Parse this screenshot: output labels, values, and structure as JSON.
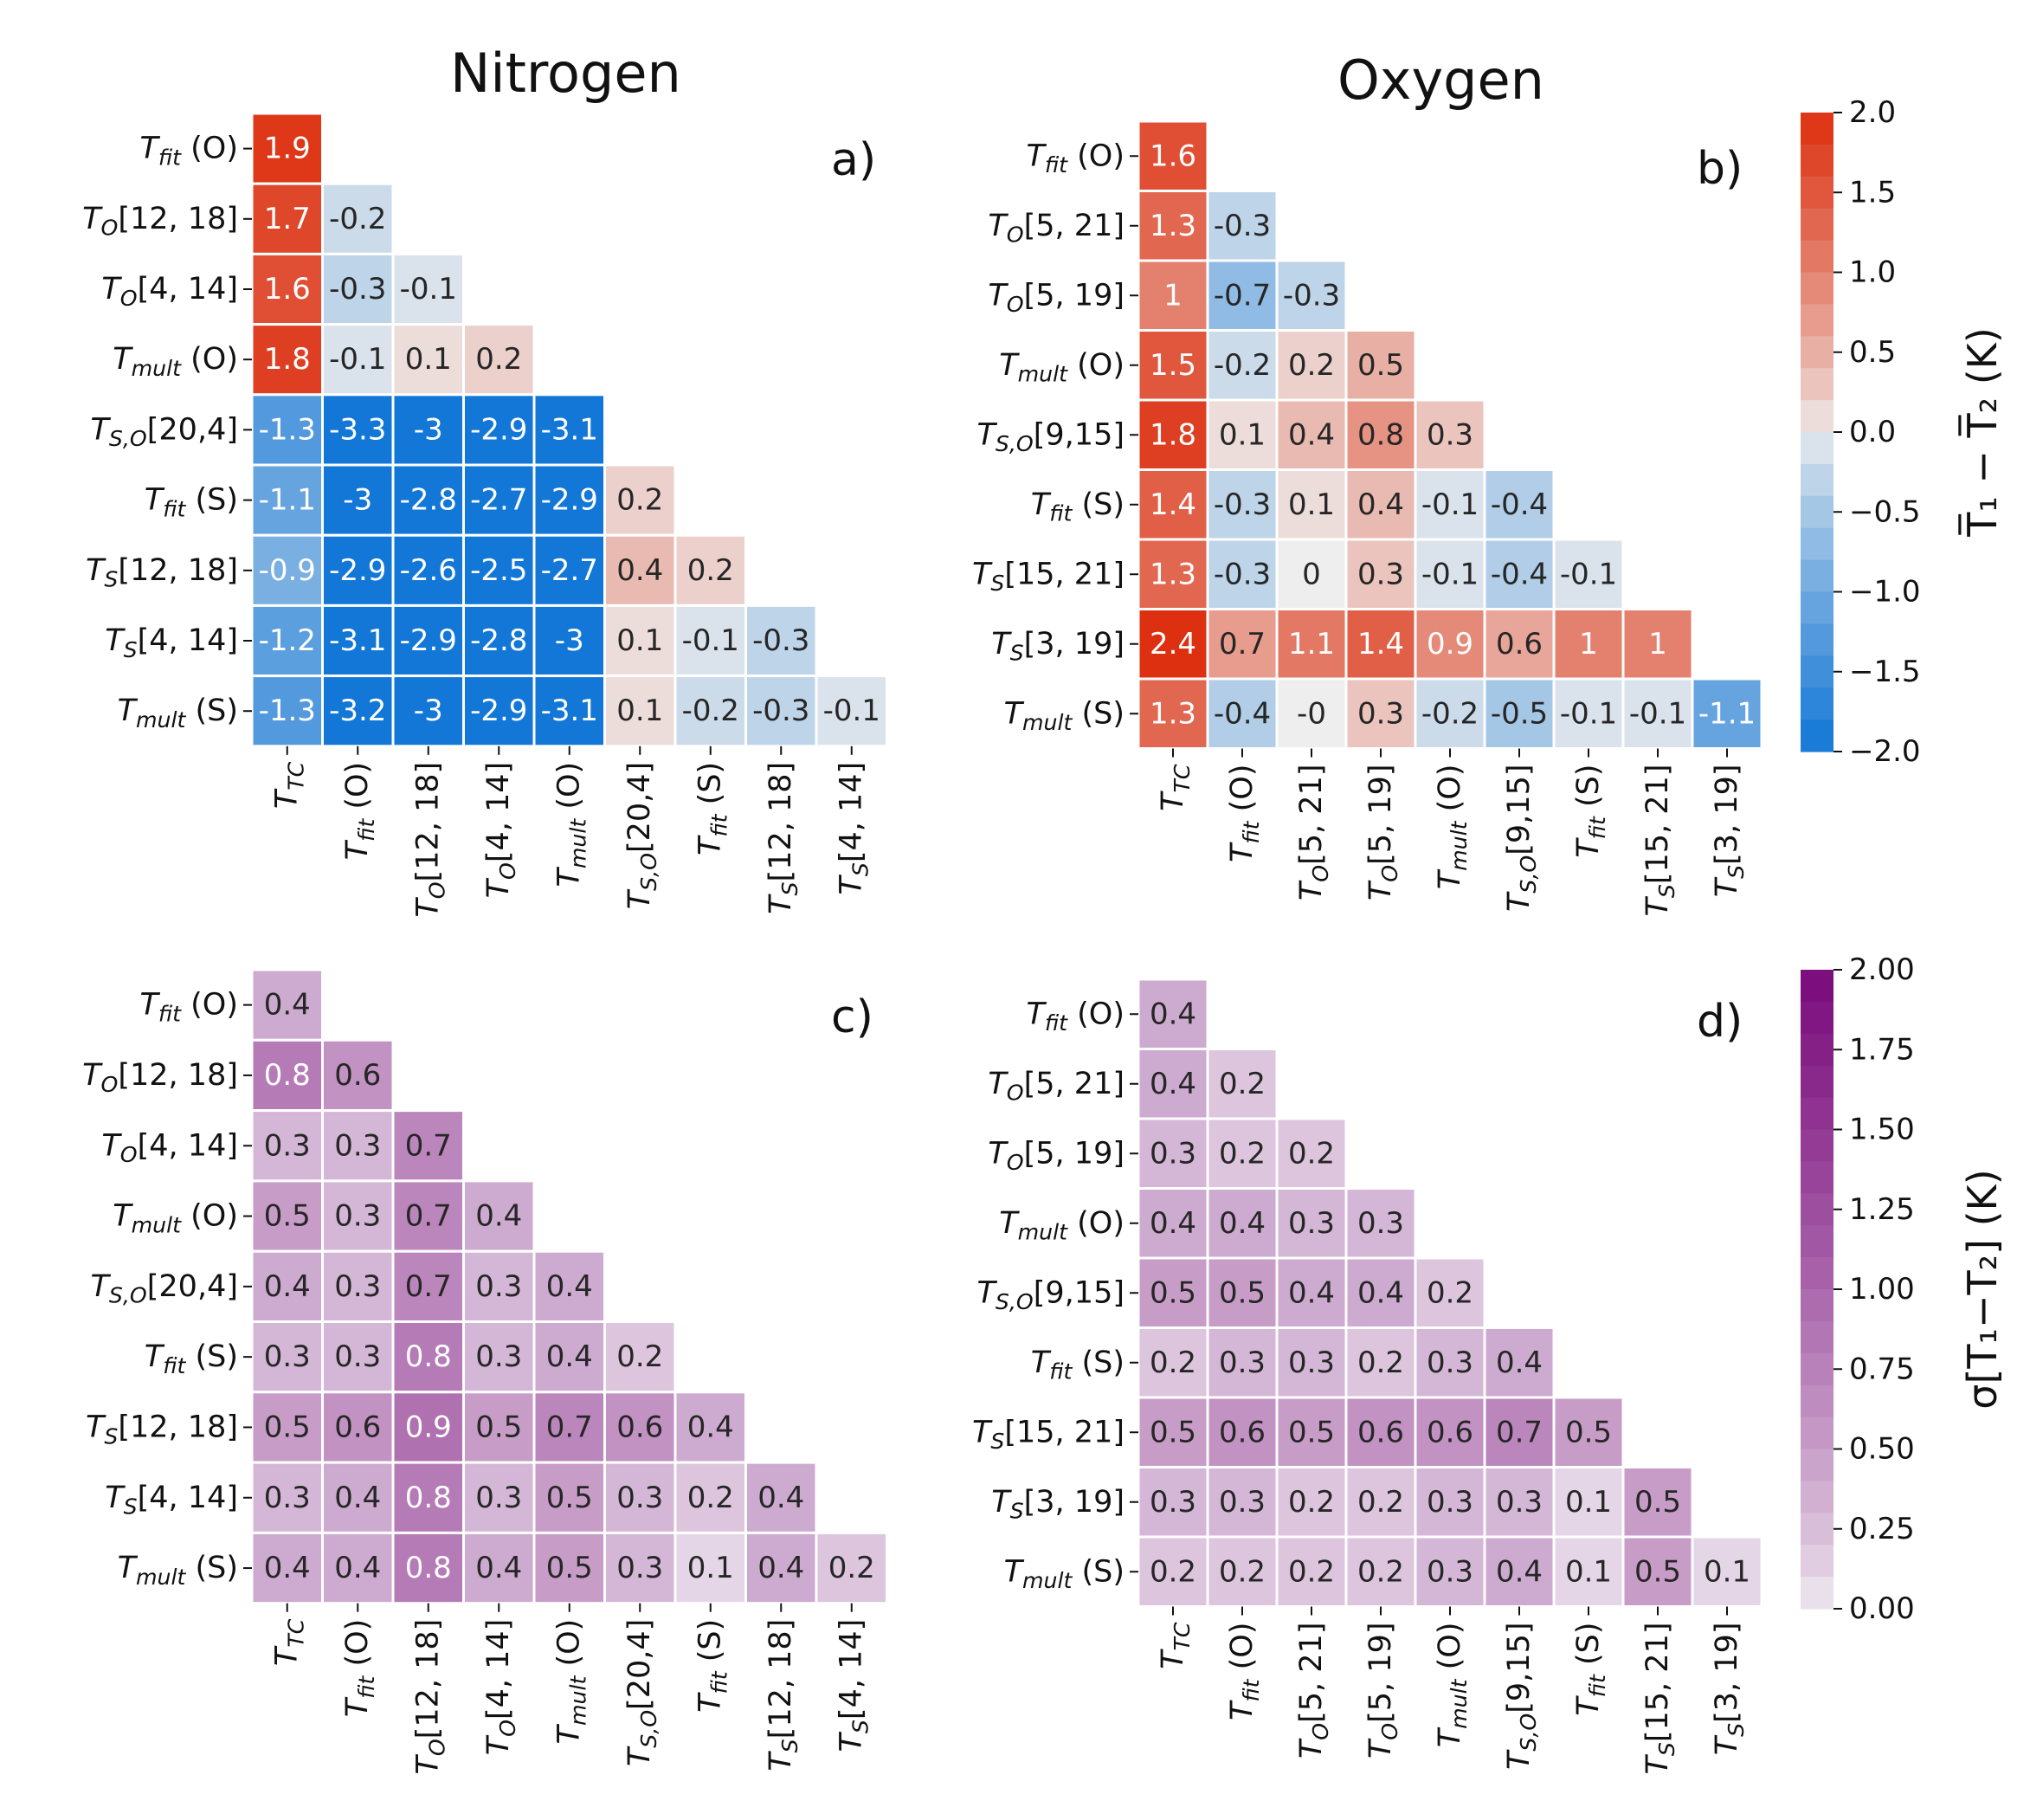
{
  "titles": {
    "nitrogen": "Nitrogen",
    "oxygen": "Oxygen"
  },
  "colorbars": [
    {
      "type": "diverging",
      "label": "T̅₁ − T̅₂ (K)",
      "ticks": [
        "2.0",
        "1.5",
        "1.0",
        "0.5",
        "0.0",
        "−0.5",
        "−1.0",
        "−1.5",
        "−2.0"
      ],
      "range": [
        -2.0,
        2.0
      ],
      "low_color": "#1277d6",
      "mid_color": "#eeeeee",
      "high_color": "#dd3010"
    },
    {
      "type": "sequential",
      "label": "σ[T₁−T₂] (K)",
      "ticks": [
        "2.00",
        "1.75",
        "1.50",
        "1.25",
        "1.00",
        "0.75",
        "0.50",
        "0.25",
        "0.00"
      ],
      "range": [
        0,
        2.0
      ],
      "low_color": "#f1eef2",
      "high_color": "#7a0a7c"
    }
  ],
  "chart_data": [
    {
      "type": "heatmap",
      "panel": "a)",
      "title": "Nitrogen",
      "scale": "diverging",
      "row_labels": [
        {
          "base": "T",
          "sub": "fit",
          "suf": " (O)"
        },
        {
          "base": "T",
          "sub": "O",
          "suf": "[12, 18]"
        },
        {
          "base": "T",
          "sub": "O",
          "suf": "[4, 14]"
        },
        {
          "base": "T",
          "sub": "mult",
          "suf": " (O)"
        },
        {
          "base": "T",
          "sub": "S,O",
          "suf": "[20,4]"
        },
        {
          "base": "T",
          "sub": "fit",
          "suf": " (S)"
        },
        {
          "base": "T",
          "sub": "S",
          "suf": "[12, 18]"
        },
        {
          "base": "T",
          "sub": "S",
          "suf": "[4, 14]"
        },
        {
          "base": "T",
          "sub": "mult",
          "suf": " (S)"
        }
      ],
      "col_labels": [
        {
          "base": "T",
          "sub": "TC",
          "suf": ""
        },
        {
          "base": "T",
          "sub": "fit",
          "suf": " (O)"
        },
        {
          "base": "T",
          "sub": "O",
          "suf": "[12, 18]"
        },
        {
          "base": "T",
          "sub": "O",
          "suf": "[4, 14]"
        },
        {
          "base": "T",
          "sub": "mult",
          "suf": " (O)"
        },
        {
          "base": "T",
          "sub": "S,O",
          "suf": "[20,4]"
        },
        {
          "base": "T",
          "sub": "fit",
          "suf": " (S)"
        },
        {
          "base": "T",
          "sub": "S",
          "suf": "[12, 18]"
        },
        {
          "base": "T",
          "sub": "S",
          "suf": "[4, 14]"
        }
      ],
      "values": [
        [
          "1.9"
        ],
        [
          "1.7",
          "-0.2"
        ],
        [
          "1.6",
          "-0.3",
          "-0.1"
        ],
        [
          "1.8",
          "-0.1",
          "0.1",
          "0.2"
        ],
        [
          "-1.3",
          "-3.3",
          "-3",
          "-2.9",
          "-3.1"
        ],
        [
          "-1.1",
          "-3",
          "-2.8",
          "-2.7",
          "-2.9",
          "0.2"
        ],
        [
          "-0.9",
          "-2.9",
          "-2.6",
          "-2.5",
          "-2.7",
          "0.4",
          "0.2"
        ],
        [
          "-1.2",
          "-3.1",
          "-2.9",
          "-2.8",
          "-3",
          "0.1",
          "-0.1",
          "-0.3"
        ],
        [
          "-1.3",
          "-3.2",
          "-3",
          "-2.9",
          "-3.1",
          "0.1",
          "-0.2",
          "-0.3",
          "-0.1"
        ]
      ]
    },
    {
      "type": "heatmap",
      "panel": "b)",
      "title": "Oxygen",
      "scale": "diverging",
      "row_labels": [
        {
          "base": "T",
          "sub": "fit",
          "suf": " (O)"
        },
        {
          "base": "T",
          "sub": "O",
          "suf": "[5, 21]"
        },
        {
          "base": "T",
          "sub": "O",
          "suf": "[5, 19]"
        },
        {
          "base": "T",
          "sub": "mult",
          "suf": " (O)"
        },
        {
          "base": "T",
          "sub": "S,O",
          "suf": "[9,15]"
        },
        {
          "base": "T",
          "sub": "fit",
          "suf": " (S)"
        },
        {
          "base": "T",
          "sub": "S",
          "suf": "[15, 21]"
        },
        {
          "base": "T",
          "sub": "S",
          "suf": "[3, 19]"
        },
        {
          "base": "T",
          "sub": "mult",
          "suf": " (S)"
        }
      ],
      "col_labels": [
        {
          "base": "T",
          "sub": "TC",
          "suf": ""
        },
        {
          "base": "T",
          "sub": "fit",
          "suf": " (O)"
        },
        {
          "base": "T",
          "sub": "O",
          "suf": "[5, 21]"
        },
        {
          "base": "T",
          "sub": "O",
          "suf": "[5, 19]"
        },
        {
          "base": "T",
          "sub": "mult",
          "suf": " (O)"
        },
        {
          "base": "T",
          "sub": "S,O",
          "suf": "[9,15]"
        },
        {
          "base": "T",
          "sub": "fit",
          "suf": " (S)"
        },
        {
          "base": "T",
          "sub": "S",
          "suf": "[15, 21]"
        },
        {
          "base": "T",
          "sub": "S",
          "suf": "[3, 19]"
        }
      ],
      "values": [
        [
          "1.6"
        ],
        [
          "1.3",
          "-0.3"
        ],
        [
          "1",
          "-0.7",
          "-0.3"
        ],
        [
          "1.5",
          "-0.2",
          "0.2",
          "0.5"
        ],
        [
          "1.8",
          "0.1",
          "0.4",
          "0.8",
          "0.3"
        ],
        [
          "1.4",
          "-0.3",
          "0.1",
          "0.4",
          "-0.1",
          "-0.4"
        ],
        [
          "1.3",
          "-0.3",
          "0",
          "0.3",
          "-0.1",
          "-0.4",
          "-0.1"
        ],
        [
          "2.4",
          "0.7",
          "1.1",
          "1.4",
          "0.9",
          "0.6",
          "1",
          "1"
        ],
        [
          "1.3",
          "-0.4",
          "-0",
          "0.3",
          "-0.2",
          "-0.5",
          "-0.1",
          "-0.1",
          "-1.1"
        ]
      ]
    },
    {
      "type": "heatmap",
      "panel": "c)",
      "title": "",
      "scale": "sequential",
      "row_labels": [
        {
          "base": "T",
          "sub": "fit",
          "suf": " (O)"
        },
        {
          "base": "T",
          "sub": "O",
          "suf": "[12, 18]"
        },
        {
          "base": "T",
          "sub": "O",
          "suf": "[4, 14]"
        },
        {
          "base": "T",
          "sub": "mult",
          "suf": " (O)"
        },
        {
          "base": "T",
          "sub": "S,O",
          "suf": "[20,4]"
        },
        {
          "base": "T",
          "sub": "fit",
          "suf": " (S)"
        },
        {
          "base": "T",
          "sub": "S",
          "suf": "[12, 18]"
        },
        {
          "base": "T",
          "sub": "S",
          "suf": "[4, 14]"
        },
        {
          "base": "T",
          "sub": "mult",
          "suf": " (S)"
        }
      ],
      "col_labels": [
        {
          "base": "T",
          "sub": "TC",
          "suf": ""
        },
        {
          "base": "T",
          "sub": "fit",
          "suf": " (O)"
        },
        {
          "base": "T",
          "sub": "O",
          "suf": "[12, 18]"
        },
        {
          "base": "T",
          "sub": "O",
          "suf": "[4, 14]"
        },
        {
          "base": "T",
          "sub": "mult",
          "suf": " (O)"
        },
        {
          "base": "T",
          "sub": "S,O",
          "suf": "[20,4]"
        },
        {
          "base": "T",
          "sub": "fit",
          "suf": " (S)"
        },
        {
          "base": "T",
          "sub": "S",
          "suf": "[12, 18]"
        },
        {
          "base": "T",
          "sub": "S",
          "suf": "[4, 14]"
        }
      ],
      "values": [
        [
          "0.4"
        ],
        [
          "0.8",
          "0.6"
        ],
        [
          "0.3",
          "0.3",
          "0.7"
        ],
        [
          "0.5",
          "0.3",
          "0.7",
          "0.4"
        ],
        [
          "0.4",
          "0.3",
          "0.7",
          "0.3",
          "0.4"
        ],
        [
          "0.3",
          "0.3",
          "0.8",
          "0.3",
          "0.4",
          "0.2"
        ],
        [
          "0.5",
          "0.6",
          "0.9",
          "0.5",
          "0.7",
          "0.6",
          "0.4"
        ],
        [
          "0.3",
          "0.4",
          "0.8",
          "0.3",
          "0.5",
          "0.3",
          "0.2",
          "0.4"
        ],
        [
          "0.4",
          "0.4",
          "0.8",
          "0.4",
          "0.5",
          "0.3",
          "0.1",
          "0.4",
          "0.2"
        ]
      ]
    },
    {
      "type": "heatmap",
      "panel": "d)",
      "title": "",
      "scale": "sequential",
      "row_labels": [
        {
          "base": "T",
          "sub": "fit",
          "suf": " (O)"
        },
        {
          "base": "T",
          "sub": "O",
          "suf": "[5, 21]"
        },
        {
          "base": "T",
          "sub": "O",
          "suf": "[5, 19]"
        },
        {
          "base": "T",
          "sub": "mult",
          "suf": " (O)"
        },
        {
          "base": "T",
          "sub": "S,O",
          "suf": "[9,15]"
        },
        {
          "base": "T",
          "sub": "fit",
          "suf": " (S)"
        },
        {
          "base": "T",
          "sub": "S",
          "suf": "[15, 21]"
        },
        {
          "base": "T",
          "sub": "S",
          "suf": "[3, 19]"
        },
        {
          "base": "T",
          "sub": "mult",
          "suf": " (S)"
        }
      ],
      "col_labels": [
        {
          "base": "T",
          "sub": "TC",
          "suf": ""
        },
        {
          "base": "T",
          "sub": "fit",
          "suf": " (O)"
        },
        {
          "base": "T",
          "sub": "O",
          "suf": "[5, 21]"
        },
        {
          "base": "T",
          "sub": "O",
          "suf": "[5, 19]"
        },
        {
          "base": "T",
          "sub": "mult",
          "suf": " (O)"
        },
        {
          "base": "T",
          "sub": "S,O",
          "suf": "[9,15]"
        },
        {
          "base": "T",
          "sub": "fit",
          "suf": " (S)"
        },
        {
          "base": "T",
          "sub": "S",
          "suf": "[15, 21]"
        },
        {
          "base": "T",
          "sub": "S",
          "suf": "[3, 19]"
        }
      ],
      "values": [
        [
          "0.4"
        ],
        [
          "0.4",
          "0.2"
        ],
        [
          "0.3",
          "0.2",
          "0.2"
        ],
        [
          "0.4",
          "0.4",
          "0.3",
          "0.3"
        ],
        [
          "0.5",
          "0.5",
          "0.4",
          "0.4",
          "0.2"
        ],
        [
          "0.2",
          "0.3",
          "0.3",
          "0.2",
          "0.3",
          "0.4"
        ],
        [
          "0.5",
          "0.6",
          "0.5",
          "0.6",
          "0.6",
          "0.7",
          "0.5"
        ],
        [
          "0.3",
          "0.3",
          "0.2",
          "0.2",
          "0.3",
          "0.3",
          "0.1",
          "0.5"
        ],
        [
          "0.2",
          "0.2",
          "0.2",
          "0.2",
          "0.3",
          "0.4",
          "0.1",
          "0.5",
          "0.1"
        ]
      ]
    }
  ]
}
